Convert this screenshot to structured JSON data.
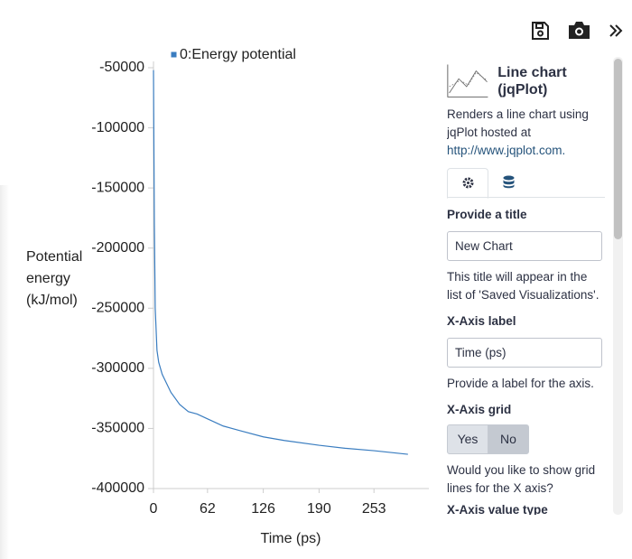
{
  "chart_data": {
    "type": "line",
    "x_label": "Time (ps)",
    "y_label": "Potential energy (kJ/mol)",
    "x": [
      0,
      1,
      2,
      4,
      6,
      10,
      20,
      30,
      40,
      50,
      62,
      80,
      100,
      126,
      150,
      190,
      220,
      253,
      292
    ],
    "series": [
      {
        "name": "0:Energy potential",
        "color": "#3a7dc0",
        "values": [
          -52000,
          -180000,
          -250000,
          -285000,
          -295000,
          -305000,
          -320000,
          -330000,
          -336000,
          -338000,
          -342000,
          -348000,
          -352000,
          -357000,
          -360000,
          -364000,
          -366500,
          -368500,
          -371500
        ]
      }
    ],
    "xlim": [
      0,
      316
    ],
    "xticks": [
      0,
      62,
      126,
      190,
      253
    ],
    "ylim": [
      -400000,
      -50000
    ],
    "yticks": [
      -400000,
      -350000,
      -300000,
      -250000,
      -200000,
      -150000,
      -100000,
      -50000
    ],
    "grid": false,
    "legend": "top"
  },
  "panel": {
    "plugin_title": "Line chart (jqPlot)",
    "description": "Renders a line chart using jqPlot hosted at",
    "link": "http://www.jqplot.com.",
    "title_label": "Provide a title",
    "title_value": "New Chart",
    "title_help": "This title will appear in the list of 'Saved Visualizations'.",
    "xlabel_label": "X-Axis label",
    "xlabel_value": "Time (ps)",
    "xlabel_help": "Provide a label for the axis.",
    "xgrid_label": "X-Axis grid",
    "yes": "Yes",
    "no": "No",
    "xgrid_help": "Would you like to show grid lines for the X axis?",
    "xtype_label": "X-Axis value type"
  }
}
